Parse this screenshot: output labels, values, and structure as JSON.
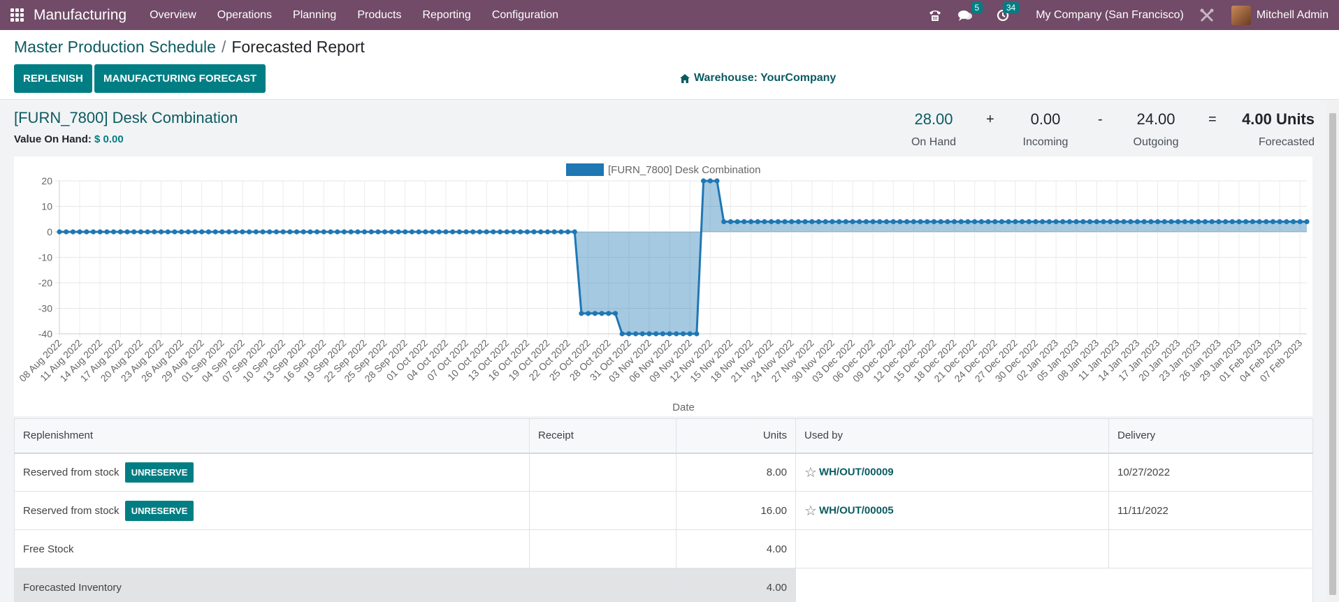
{
  "navbar": {
    "app_name": "Manufacturing",
    "menu": [
      "Overview",
      "Operations",
      "Planning",
      "Products",
      "Reporting",
      "Configuration"
    ],
    "messages_count": "5",
    "activities_count": "34",
    "company": "My Company (San Francisco)",
    "user": "Mitchell Admin"
  },
  "breadcrumb": {
    "parent": "Master Production Schedule",
    "separator": "/",
    "current": "Forecasted Report"
  },
  "buttons": {
    "replenish": "REPLENISH",
    "manufacturing_forecast": "MANUFACTURING FORECAST"
  },
  "warehouse": "Warehouse: YourCompany",
  "product": {
    "title": "[FURN_7800] Desk Combination",
    "value_label": "Value On Hand:",
    "value": "$ 0.00"
  },
  "stats": {
    "on_hand": {
      "value": "28.00",
      "label": "On Hand"
    },
    "plus": "+",
    "incoming": {
      "value": "0.00",
      "label": "Incoming"
    },
    "minus": "-",
    "outgoing": {
      "value": "24.00",
      "label": "Outgoing"
    },
    "equals": "=",
    "forecasted": {
      "value": "4.00 Units",
      "label": "Forecasted"
    }
  },
  "colors": {
    "navbar": "#714B67",
    "accent": "#017e84",
    "link": "#0b5b61",
    "series": "#1f77b4"
  },
  "chart_data": {
    "type": "line",
    "legend": "[FURN_7800] Desk Combination",
    "xlabel": "Date",
    "ylabel": "",
    "ylim": [
      -40,
      20
    ],
    "yticks": [
      -40,
      -30,
      -20,
      -10,
      0,
      10,
      20
    ],
    "fill": true,
    "grid": true,
    "x_tick_labels": [
      "08 Aug 2022",
      "11 Aug 2022",
      "14 Aug 2022",
      "17 Aug 2022",
      "20 Aug 2022",
      "23 Aug 2022",
      "26 Aug 2022",
      "29 Aug 2022",
      "01 Sep 2022",
      "04 Sep 2022",
      "07 Sep 2022",
      "10 Sep 2022",
      "13 Sep 2022",
      "16 Sep 2022",
      "19 Sep 2022",
      "22 Sep 2022",
      "25 Sep 2022",
      "28 Sep 2022",
      "01 Oct 2022",
      "04 Oct 2022",
      "07 Oct 2022",
      "10 Oct 2022",
      "13 Oct 2022",
      "16 Oct 2022",
      "19 Oct 2022",
      "22 Oct 2022",
      "25 Oct 2022",
      "28 Oct 2022",
      "31 Oct 2022",
      "03 Nov 2022",
      "06 Nov 2022",
      "09 Nov 2022",
      "12 Nov 2022",
      "15 Nov 2022",
      "18 Nov 2022",
      "21 Nov 2022",
      "24 Nov 2022",
      "27 Nov 2022",
      "30 Nov 2022",
      "03 Dec 2022",
      "06 Dec 2022",
      "09 Dec 2022",
      "12 Dec 2022",
      "15 Dec 2022",
      "18 Dec 2022",
      "21 Dec 2022",
      "24 Dec 2022",
      "27 Dec 2022",
      "30 Dec 2022",
      "02 Jan 2023",
      "05 Jan 2023",
      "08 Jan 2023",
      "11 Jan 2023",
      "14 Jan 2023",
      "17 Jan 2023",
      "20 Jan 2023",
      "23 Jan 2023",
      "26 Jan 2023",
      "29 Jan 2023",
      "01 Feb 2023",
      "04 Feb 2023",
      "07 Feb 2023"
    ],
    "series": [
      {
        "name": "[FURN_7800] Desk Combination",
        "segments": [
          {
            "from": "2022-08-08",
            "to": "2022-10-23",
            "value": 0
          },
          {
            "from": "2022-10-24",
            "to": "2022-10-29",
            "value": -32
          },
          {
            "from": "2022-10-30",
            "to": "2022-11-10",
            "value": -40
          },
          {
            "from": "2022-11-11",
            "to": "2022-11-13",
            "value": 20
          },
          {
            "from": "2022-11-14",
            "to": "2023-02-08",
            "value": 4
          }
        ]
      }
    ]
  },
  "table": {
    "headers": [
      "Replenishment",
      "Receipt",
      "Units",
      "Used by",
      "Delivery"
    ],
    "rows": [
      {
        "replenishment": "Reserved from stock",
        "action": "UNRESERVE",
        "receipt": "",
        "units": "8.00",
        "used_by": "WH/OUT/00009",
        "delivery": "10/27/2022"
      },
      {
        "replenishment": "Reserved from stock",
        "action": "UNRESERVE",
        "receipt": "",
        "units": "16.00",
        "used_by": "WH/OUT/00005",
        "delivery": "11/11/2022"
      }
    ],
    "free_stock": {
      "label": "Free Stock",
      "units": "4.00"
    },
    "forecasted_inventory": {
      "label": "Forecasted Inventory",
      "units": "4.00"
    }
  }
}
